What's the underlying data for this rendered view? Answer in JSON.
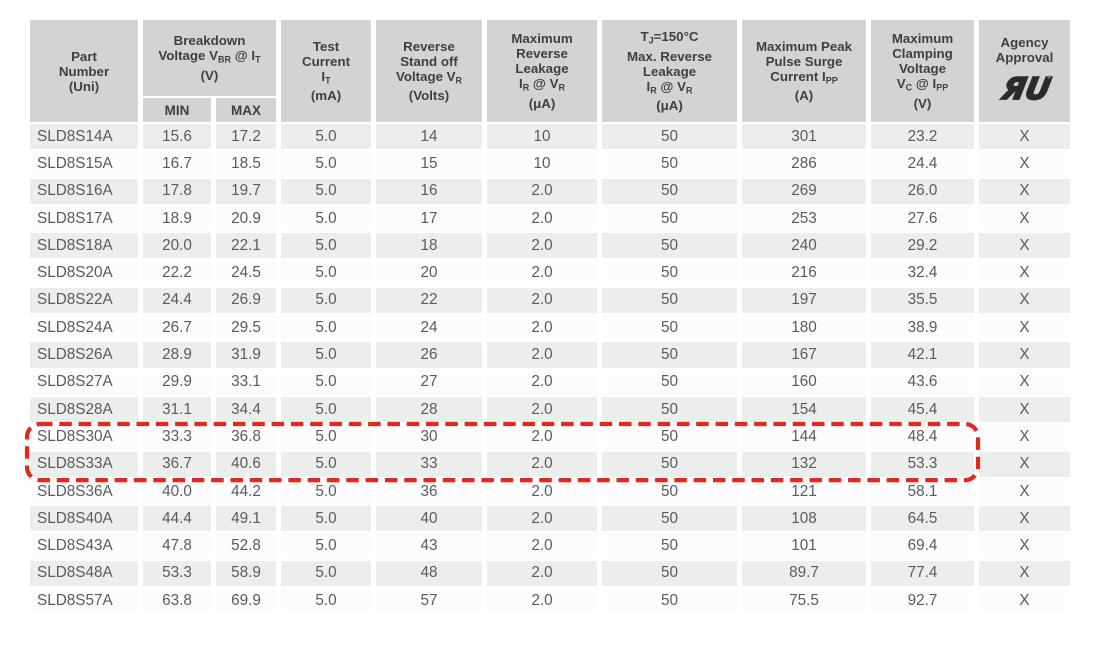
{
  "colors": {
    "page_background": "#ffffff",
    "header_background": "#d3d4d2",
    "stripe_row_background": "#eceeec",
    "plain_row_background": "#fbfcfb",
    "header_text": "#3e3f41",
    "cell_text": "#595b5e",
    "highlight_red": "#e3281e"
  },
  "table": {
    "column_ids": [
      "part-number",
      "breakdown-min",
      "breakdown-max",
      "test-current",
      "standoff-voltage",
      "max-reverse-leakage",
      "tj-max-reverse-leakage",
      "peak-pulse-current",
      "clamping-voltage",
      "agency-approval"
    ],
    "headers": {
      "part": [
        "Part",
        "Number",
        "(Uni)"
      ],
      "breakdown": [
        "Breakdown",
        "Voltage V~BR~ @ I~T~",
        "(V)"
      ],
      "min": "MIN",
      "max": "MAX",
      "test": [
        "Test",
        "Current",
        "I~T~",
        "(mA)"
      ],
      "standoff": [
        "Reverse",
        "Stand off",
        "Voltage V~R~",
        "(Volts)"
      ],
      "leakage": [
        "Maximum",
        "Reverse",
        "Leakage",
        "I~R~ @ V~R~",
        "(μA)"
      ],
      "tj_leakage": [
        "T~J~=150°C",
        "Max. Reverse",
        "Leakage",
        "I~R~ @ V~R~",
        "(μA)"
      ],
      "surge": [
        "Maximum Peak",
        "Pulse Surge",
        "Current I~PP~",
        "(A)"
      ],
      "clamping": [
        "Maximum",
        "Clamping",
        "Voltage",
        "V~C~ @ I~PP~",
        "(V)"
      ],
      "agency": [
        "Agency",
        "Approval"
      ]
    },
    "agency_logo": "ul-recognized-mark",
    "rows": [
      [
        "SLD8S14A",
        "15.6",
        "17.2",
        "5.0",
        "14",
        "10",
        "50",
        "301",
        "23.2",
        "X"
      ],
      [
        "SLD8S15A",
        "16.7",
        "18.5",
        "5.0",
        "15",
        "10",
        "50",
        "286",
        "24.4",
        "X"
      ],
      [
        "SLD8S16A",
        "17.8",
        "19.7",
        "5.0",
        "16",
        "2.0",
        "50",
        "269",
        "26.0",
        "X"
      ],
      [
        "SLD8S17A",
        "18.9",
        "20.9",
        "5.0",
        "17",
        "2.0",
        "50",
        "253",
        "27.6",
        "X"
      ],
      [
        "SLD8S18A",
        "20.0",
        "22.1",
        "5.0",
        "18",
        "2.0",
        "50",
        "240",
        "29.2",
        "X"
      ],
      [
        "SLD8S20A",
        "22.2",
        "24.5",
        "5.0",
        "20",
        "2.0",
        "50",
        "216",
        "32.4",
        "X"
      ],
      [
        "SLD8S22A",
        "24.4",
        "26.9",
        "5.0",
        "22",
        "2.0",
        "50",
        "197",
        "35.5",
        "X"
      ],
      [
        "SLD8S24A",
        "26.7",
        "29.5",
        "5.0",
        "24",
        "2.0",
        "50",
        "180",
        "38.9",
        "X"
      ],
      [
        "SLD8S26A",
        "28.9",
        "31.9",
        "5.0",
        "26",
        "2.0",
        "50",
        "167",
        "42.1",
        "X"
      ],
      [
        "SLD8S27A",
        "29.9",
        "33.1",
        "5.0",
        "27",
        "2.0",
        "50",
        "160",
        "43.6",
        "X"
      ],
      [
        "SLD8S28A",
        "31.1",
        "34.4",
        "5.0",
        "28",
        "2.0",
        "50",
        "154",
        "45.4",
        "X"
      ],
      [
        "SLD8S30A",
        "33.3",
        "36.8",
        "5.0",
        "30",
        "2.0",
        "50",
        "144",
        "48.4",
        "X"
      ],
      [
        "SLD8S33A",
        "36.7",
        "40.6",
        "5.0",
        "33",
        "2.0",
        "50",
        "132",
        "53.3",
        "X"
      ],
      [
        "SLD8S36A",
        "40.0",
        "44.2",
        "5.0",
        "36",
        "2.0",
        "50",
        "121",
        "58.1",
        "X"
      ],
      [
        "SLD8S40A",
        "44.4",
        "49.1",
        "5.0",
        "40",
        "2.0",
        "50",
        "108",
        "64.5",
        "X"
      ],
      [
        "SLD8S43A",
        "47.8",
        "52.8",
        "5.0",
        "43",
        "2.0",
        "50",
        "101",
        "69.4",
        "X"
      ],
      [
        "SLD8S48A",
        "53.3",
        "58.9",
        "5.0",
        "48",
        "2.0",
        "50",
        "89.7",
        "77.4",
        "X"
      ],
      [
        "SLD8S57A",
        "63.8",
        "69.9",
        "5.0",
        "57",
        "2.0",
        "50",
        "75.5",
        "92.7",
        "X"
      ]
    ],
    "highlight": {
      "row_indexes": [
        11,
        12
      ],
      "parts": [
        "SLD8S30A",
        "SLD8S33A"
      ],
      "color": "#e3281e"
    }
  }
}
